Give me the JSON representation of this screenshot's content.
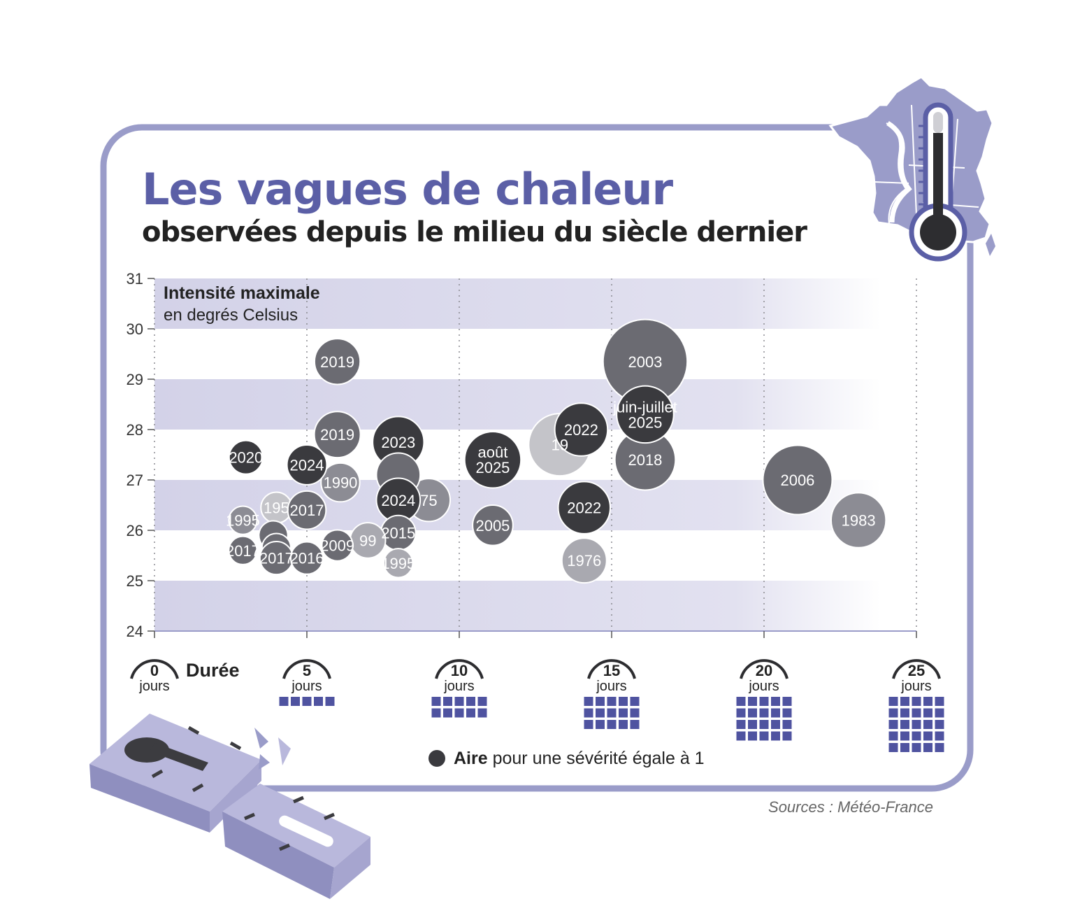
{
  "header": {
    "title": "Les vagues de chaleur",
    "subtitle": "observées depuis le milieu du siècle dernier"
  },
  "chart_data": {
    "type": "scatter",
    "title": "Les vagues de chaleur",
    "subtitle": "observées depuis le milieu du siècle dernier",
    "ylabel": "Intensité maximale",
    "ylabel_unit": "en degrés Celsius",
    "xlabel": "Durée",
    "x_unit": "jours",
    "ylim": [
      24,
      31
    ],
    "xlim": [
      0,
      25
    ],
    "y_ticks": [
      "31",
      "30",
      "29",
      "28",
      "27",
      "26",
      "25",
      "24"
    ],
    "x_ticks": [
      "0",
      "5",
      "10",
      "15",
      "20",
      "25"
    ],
    "x_tick_blocks": [
      0,
      5,
      10,
      15,
      20,
      25
    ],
    "size_encoding": "Aire pour une sévérité égale à 1",
    "legend_bold": "Aire",
    "legend_rest": "pour une sévérité égale à 1",
    "colors": {
      "darkest": "#3a3a3e",
      "dark": "#6b6b72",
      "medium": "#8c8c94",
      "light": "#a9a9b0",
      "lightest": "#c4c4c9",
      "accent": "#5b5fa6",
      "band": "#d9d8ea",
      "frame": "#9a9cc9"
    },
    "points": [
      {
        "label": "2003",
        "x": 16.1,
        "y": 29.35,
        "severity": 17,
        "shade": "dark"
      },
      {
        "label": "2018",
        "x": 16.1,
        "y": 27.4,
        "severity": 8.8,
        "shade": "dark"
      },
      {
        "label": "2006",
        "x": 21.1,
        "y": 27.0,
        "severity": 11.5,
        "shade": "dark"
      },
      {
        "label": "1983",
        "x": 23.1,
        "y": 26.2,
        "severity": 7.2,
        "shade": "medium"
      },
      {
        "label": "19",
        "x": 13.3,
        "y": 27.7,
        "severity": 9.3,
        "shade": "lightest"
      },
      {
        "label": "juin-juillet\n2025",
        "x": 16.1,
        "y": 28.3,
        "severity": 7.8,
        "shade": "darkest"
      },
      {
        "label": "2022",
        "x": 14.0,
        "y": 28.0,
        "severity": 6.7,
        "shade": "darkest"
      },
      {
        "label": "2022",
        "x": 14.1,
        "y": 26.45,
        "severity": 6.5,
        "shade": "darkest"
      },
      {
        "label": "1976",
        "x": 14.1,
        "y": 25.4,
        "severity": 4.8,
        "shade": "light"
      },
      {
        "label": "août\n2025",
        "x": 11.1,
        "y": 27.4,
        "severity": 7.6,
        "shade": "darkest"
      },
      {
        "label": "2005",
        "x": 11.1,
        "y": 26.1,
        "severity": 3.9,
        "shade": "dark"
      },
      {
        "label": "2023",
        "x": 8.0,
        "y": 27.75,
        "severity": 6.3,
        "shade": "darkest"
      },
      {
        "label": "75",
        "x": 9.0,
        "y": 26.6,
        "severity": 4.4,
        "shade": "medium"
      },
      {
        "label": "",
        "x": 8.0,
        "y": 27.1,
        "severity": 4.6,
        "shade": "dark"
      },
      {
        "label": "2024",
        "x": 8.0,
        "y": 26.6,
        "severity": 4.6,
        "shade": "darkest"
      },
      {
        "label": "2015",
        "x": 8.0,
        "y": 25.95,
        "severity": 2.9,
        "shade": "dark"
      },
      {
        "label": "1995",
        "x": 8.0,
        "y": 25.35,
        "severity": 2.0,
        "shade": "light"
      },
      {
        "label": "99",
        "x": 7.0,
        "y": 25.8,
        "severity": 3.0,
        "shade": "light"
      },
      {
        "label": "2019",
        "x": 6.0,
        "y": 29.35,
        "severity": 5.0,
        "shade": "dark"
      },
      {
        "label": "2019",
        "x": 6.0,
        "y": 27.9,
        "severity": 5.1,
        "shade": "dark"
      },
      {
        "label": "1990",
        "x": 6.1,
        "y": 26.95,
        "severity": 3.6,
        "shade": "medium"
      },
      {
        "label": "2020",
        "x": 3.0,
        "y": 27.45,
        "severity": 2.7,
        "shade": "darkest"
      },
      {
        "label": "2024",
        "x": 5.0,
        "y": 27.3,
        "severity": 3.8,
        "shade": "darkest"
      },
      {
        "label": "195",
        "x": 4.0,
        "y": 26.45,
        "severity": 2.3,
        "shade": "lightest"
      },
      {
        "label": "2017",
        "x": 5.0,
        "y": 26.4,
        "severity": 3.5,
        "shade": "dark"
      },
      {
        "label": "1995",
        "x": 2.9,
        "y": 26.2,
        "severity": 1.9,
        "shade": "medium"
      },
      {
        "label": "",
        "x": 3.9,
        "y": 25.9,
        "severity": 2.0,
        "shade": "dark"
      },
      {
        "label": "",
        "x": 4.0,
        "y": 25.65,
        "severity": 2.0,
        "shade": "dark"
      },
      {
        "label": "2017",
        "x": 2.9,
        "y": 25.6,
        "severity": 1.9,
        "shade": "dark"
      },
      {
        "label": "2017",
        "x": 4.0,
        "y": 25.45,
        "severity": 2.6,
        "shade": "dark"
      },
      {
        "label": "2016",
        "x": 5.0,
        "y": 25.45,
        "severity": 2.5,
        "shade": "dark"
      },
      {
        "label": "2009",
        "x": 6.0,
        "y": 25.7,
        "severity": 2.3,
        "shade": "dark"
      }
    ]
  },
  "legend": {
    "bold": "Aire",
    "text": "pour une sévérité égale à 1"
  },
  "source": "Sources : Météo-France"
}
